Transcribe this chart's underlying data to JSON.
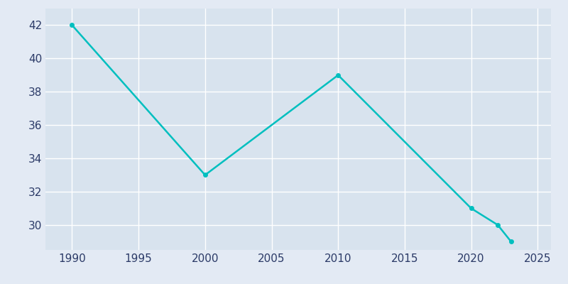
{
  "years": [
    1990,
    2000,
    2010,
    2020,
    2022,
    2023
  ],
  "values": [
    42,
    33,
    39,
    31,
    30,
    29
  ],
  "line_color": "#00BFBF",
  "background_color": "#E3EAF4",
  "plot_background": "#D8E3EE",
  "grid_color": "#FFFFFF",
  "tick_color": "#2B3A67",
  "xlim": [
    1988,
    2026
  ],
  "ylim": [
    28.5,
    43
  ],
  "xticks": [
    1990,
    1995,
    2000,
    2005,
    2010,
    2015,
    2020,
    2025
  ],
  "yticks": [
    30,
    32,
    34,
    36,
    38,
    40,
    42
  ],
  "line_width": 1.8,
  "marker_size": 4,
  "tick_labelsize": 11
}
